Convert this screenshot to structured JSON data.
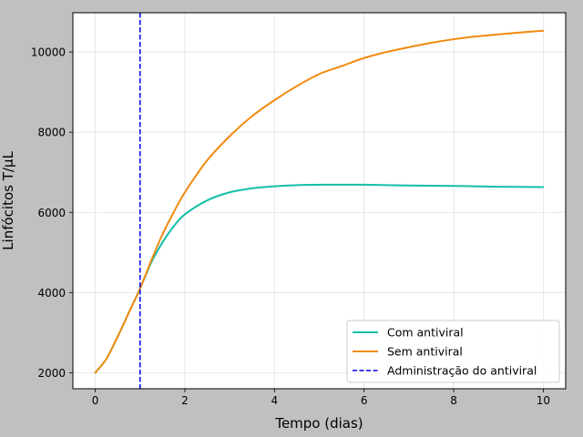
{
  "chart_data": {
    "type": "line",
    "title": "",
    "xlabel": "Tempo (dias)",
    "ylabel": "Linfócitos T/µL",
    "xlim": [
      -0.5,
      10.5
    ],
    "ylim": [
      1600,
      10980
    ],
    "xticks": [
      0,
      2,
      4,
      6,
      8,
      10
    ],
    "yticks": [
      2000,
      4000,
      6000,
      8000,
      10000
    ],
    "grid": true,
    "legend_position": "lower-right",
    "series": [
      {
        "name": "Com antiviral",
        "color": "#14bfa6",
        "x": [
          0,
          0.25,
          0.5,
          0.75,
          1,
          1.25,
          1.5,
          1.75,
          2,
          2.5,
          3,
          3.5,
          4,
          4.5,
          5,
          5.5,
          6,
          7,
          8,
          9,
          10
        ],
        "y": [
          2000,
          2350,
          2900,
          3500,
          4100,
          4750,
          5250,
          5650,
          5950,
          6300,
          6500,
          6600,
          6650,
          6680,
          6690,
          6690,
          6690,
          6670,
          6660,
          6640,
          6630
        ]
      },
      {
        "name": "Sem antiviral",
        "color": "#f28a0f",
        "x": [
          0,
          0.25,
          0.5,
          0.75,
          1,
          1.25,
          1.5,
          1.75,
          2,
          2.5,
          3,
          3.5,
          4,
          4.5,
          5,
          5.5,
          6,
          6.5,
          7,
          7.5,
          8,
          8.5,
          9,
          9.5,
          10
        ],
        "y": [
          2000,
          2350,
          2900,
          3500,
          4100,
          4800,
          5450,
          6000,
          6500,
          7300,
          7900,
          8400,
          8800,
          9150,
          9450,
          9650,
          9850,
          10000,
          10120,
          10230,
          10320,
          10390,
          10440,
          10490,
          10530
        ]
      }
    ],
    "vline": {
      "name": "Administração do antiviral",
      "x": 1,
      "color": "#0000ee",
      "style": "dashed"
    }
  }
}
